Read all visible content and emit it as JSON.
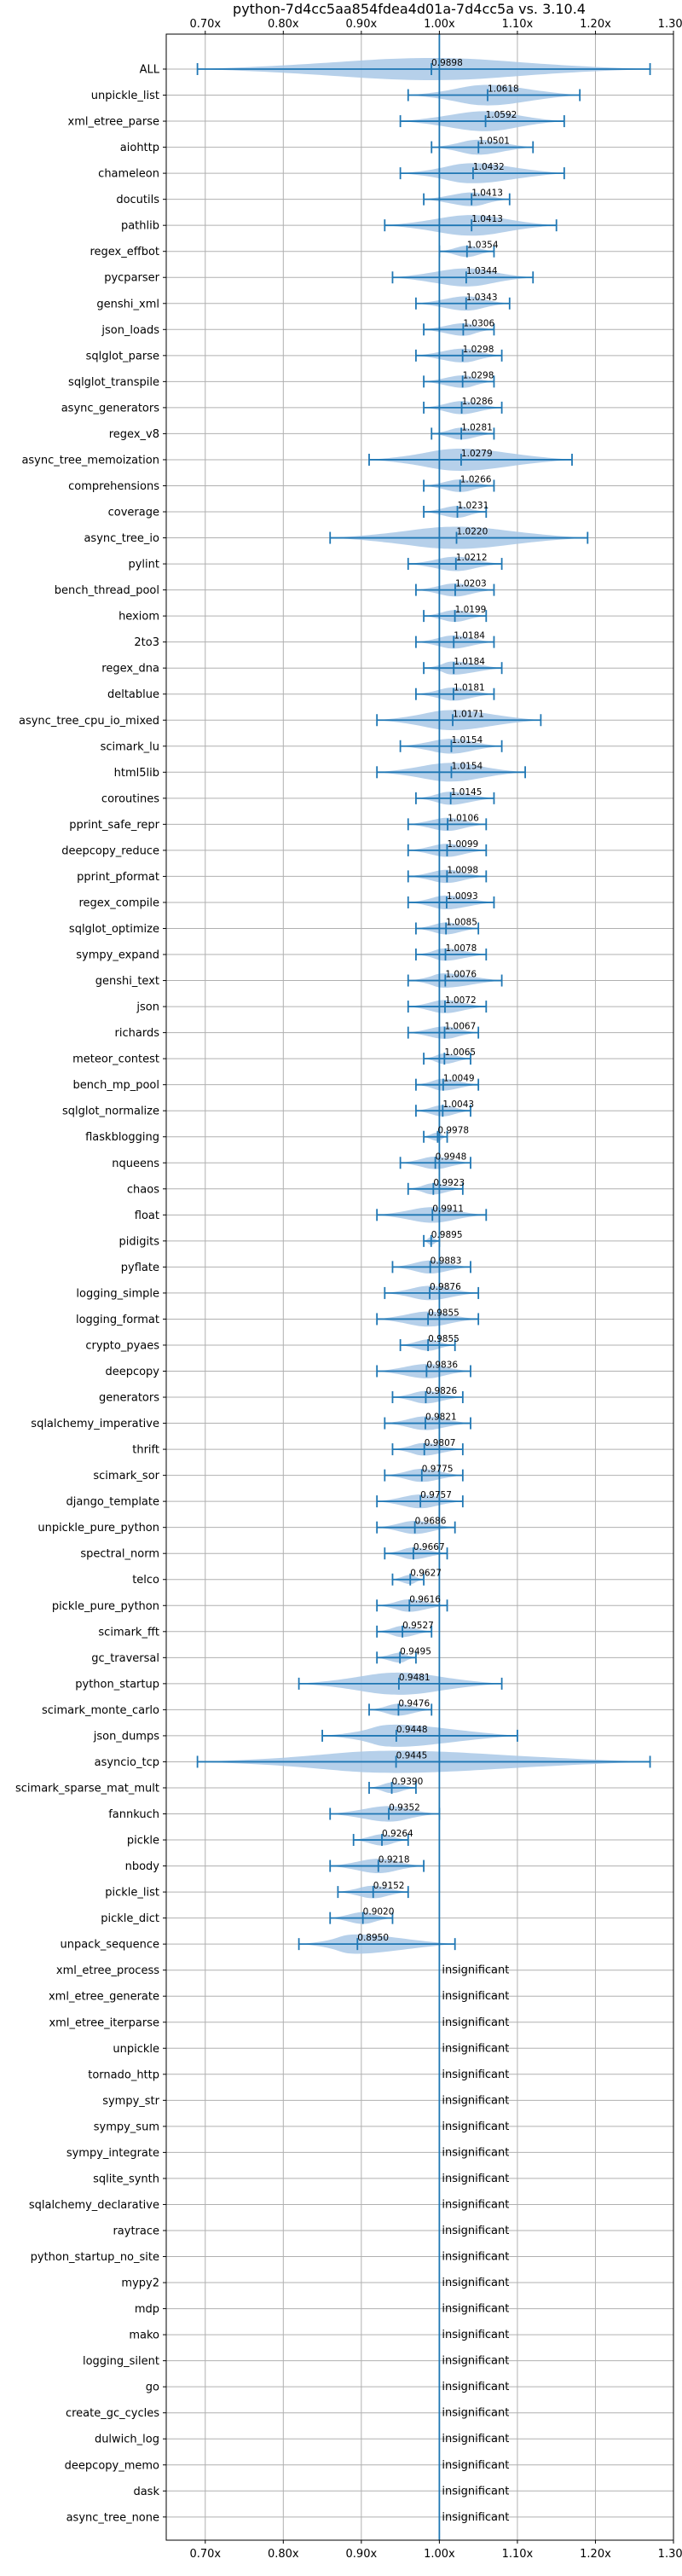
{
  "chart_data": {
    "type": "violin",
    "title": "python-7d4cc5aa854fdea4d01a-7d4cc5a vs. 3.10.4",
    "xlim": [
      0.65,
      1.3
    ],
    "xticks": [
      0.7,
      0.8,
      0.9,
      1.0,
      1.1,
      1.2,
      1.3
    ],
    "xtick_labels": [
      "0.70x",
      "0.80x",
      "0.90x",
      "1.00x",
      "1.10x",
      "1.20x",
      "1.30x"
    ],
    "reference_line": 1.0,
    "grid": true,
    "insignificant_label": "insignificant",
    "benchmarks": [
      {
        "name": "ALL",
        "value": 0.9898,
        "label": "0.9898",
        "min": 0.69,
        "max": 1.27
      },
      {
        "name": "unpickle_list",
        "value": 1.0618,
        "label": "1.0618",
        "min": 0.96,
        "max": 1.18
      },
      {
        "name": "xml_etree_parse",
        "value": 1.0592,
        "label": "1.0592",
        "min": 0.95,
        "max": 1.16
      },
      {
        "name": "aiohttp",
        "value": 1.0501,
        "label": "1.0501",
        "min": 0.99,
        "max": 1.12
      },
      {
        "name": "chameleon",
        "value": 1.0432,
        "label": "1.0432",
        "min": 0.95,
        "max": 1.16
      },
      {
        "name": "docutils",
        "value": 1.0413,
        "label": "1.0413",
        "min": 0.98,
        "max": 1.09
      },
      {
        "name": "pathlib",
        "value": 1.0413,
        "label": "1.0413",
        "min": 0.93,
        "max": 1.15
      },
      {
        "name": "regex_effbot",
        "value": 1.0354,
        "label": "1.0354",
        "min": 1.0,
        "max": 1.07
      },
      {
        "name": "pycparser",
        "value": 1.0344,
        "label": "1.0344",
        "min": 0.94,
        "max": 1.12
      },
      {
        "name": "genshi_xml",
        "value": 1.0343,
        "label": "1.0343",
        "min": 0.97,
        "max": 1.09
      },
      {
        "name": "json_loads",
        "value": 1.0306,
        "label": "1.0306",
        "min": 0.98,
        "max": 1.07
      },
      {
        "name": "sqlglot_parse",
        "value": 1.0298,
        "label": "1.0298",
        "min": 0.97,
        "max": 1.08
      },
      {
        "name": "sqlglot_transpile",
        "value": 1.0298,
        "label": "1.0298",
        "min": 0.98,
        "max": 1.07
      },
      {
        "name": "async_generators",
        "value": 1.0286,
        "label": "1.0286",
        "min": 0.98,
        "max": 1.08
      },
      {
        "name": "regex_v8",
        "value": 1.0281,
        "label": "1.0281",
        "min": 0.99,
        "max": 1.07
      },
      {
        "name": "async_tree_memoization",
        "value": 1.0279,
        "label": "1.0279",
        "min": 0.91,
        "max": 1.17
      },
      {
        "name": "comprehensions",
        "value": 1.0266,
        "label": "1.0266",
        "min": 0.98,
        "max": 1.07
      },
      {
        "name": "coverage",
        "value": 1.0231,
        "label": "1.0231",
        "min": 0.98,
        "max": 1.06
      },
      {
        "name": "async_tree_io",
        "value": 1.022,
        "label": "1.0220",
        "min": 0.86,
        "max": 1.19
      },
      {
        "name": "pylint",
        "value": 1.0212,
        "label": "1.0212",
        "min": 0.96,
        "max": 1.08
      },
      {
        "name": "bench_thread_pool",
        "value": 1.0203,
        "label": "1.0203",
        "min": 0.97,
        "max": 1.07
      },
      {
        "name": "hexiom",
        "value": 1.0199,
        "label": "1.0199",
        "min": 0.98,
        "max": 1.06
      },
      {
        "name": "2to3",
        "value": 1.0184,
        "label": "1.0184",
        "min": 0.97,
        "max": 1.07
      },
      {
        "name": "regex_dna",
        "value": 1.0184,
        "label": "1.0184",
        "min": 0.98,
        "max": 1.08
      },
      {
        "name": "deltablue",
        "value": 1.0181,
        "label": "1.0181",
        "min": 0.97,
        "max": 1.07
      },
      {
        "name": "async_tree_cpu_io_mixed",
        "value": 1.0171,
        "label": "1.0171",
        "min": 0.92,
        "max": 1.13
      },
      {
        "name": "scimark_lu",
        "value": 1.0154,
        "label": "1.0154",
        "min": 0.95,
        "max": 1.08
      },
      {
        "name": "html5lib",
        "value": 1.0154,
        "label": "1.0154",
        "min": 0.92,
        "max": 1.11
      },
      {
        "name": "coroutines",
        "value": 1.0145,
        "label": "1.0145",
        "min": 0.97,
        "max": 1.07
      },
      {
        "name": "pprint_safe_repr",
        "value": 1.0106,
        "label": "1.0106",
        "min": 0.96,
        "max": 1.06
      },
      {
        "name": "deepcopy_reduce",
        "value": 1.0099,
        "label": "1.0099",
        "min": 0.96,
        "max": 1.06
      },
      {
        "name": "pprint_pformat",
        "value": 1.0098,
        "label": "1.0098",
        "min": 0.96,
        "max": 1.06
      },
      {
        "name": "regex_compile",
        "value": 1.0093,
        "label": "1.0093",
        "min": 0.96,
        "max": 1.07
      },
      {
        "name": "sqlglot_optimize",
        "value": 1.0085,
        "label": "1.0085",
        "min": 0.97,
        "max": 1.05
      },
      {
        "name": "sympy_expand",
        "value": 1.0078,
        "label": "1.0078",
        "min": 0.97,
        "max": 1.06
      },
      {
        "name": "genshi_text",
        "value": 1.0076,
        "label": "1.0076",
        "min": 0.96,
        "max": 1.08
      },
      {
        "name": "json",
        "value": 1.0072,
        "label": "1.0072",
        "min": 0.96,
        "max": 1.06
      },
      {
        "name": "richards",
        "value": 1.0067,
        "label": "1.0067",
        "min": 0.96,
        "max": 1.05
      },
      {
        "name": "meteor_contest",
        "value": 1.0065,
        "label": "1.0065",
        "min": 0.98,
        "max": 1.04
      },
      {
        "name": "bench_mp_pool",
        "value": 1.0049,
        "label": "1.0049",
        "min": 0.97,
        "max": 1.05
      },
      {
        "name": "sqlglot_normalize",
        "value": 1.0043,
        "label": "1.0043",
        "min": 0.97,
        "max": 1.04
      },
      {
        "name": "flaskblogging",
        "value": 0.9978,
        "label": "0.9978",
        "min": 0.98,
        "max": 1.01
      },
      {
        "name": "nqueens",
        "value": 0.9948,
        "label": "0.9948",
        "min": 0.95,
        "max": 1.04
      },
      {
        "name": "chaos",
        "value": 0.9923,
        "label": "0.9923",
        "min": 0.96,
        "max": 1.03
      },
      {
        "name": "float",
        "value": 0.9911,
        "label": "0.9911",
        "min": 0.92,
        "max": 1.06
      },
      {
        "name": "pidigits",
        "value": 0.9895,
        "label": "0.9895",
        "min": 0.98,
        "max": 1.0
      },
      {
        "name": "pyflate",
        "value": 0.9883,
        "label": "0.9883",
        "min": 0.94,
        "max": 1.04
      },
      {
        "name": "logging_simple",
        "value": 0.9876,
        "label": "0.9876",
        "min": 0.93,
        "max": 1.05
      },
      {
        "name": "logging_format",
        "value": 0.9855,
        "label": "0.9855",
        "min": 0.92,
        "max": 1.05
      },
      {
        "name": "crypto_pyaes",
        "value": 0.9855,
        "label": "0.9855",
        "min": 0.95,
        "max": 1.02
      },
      {
        "name": "deepcopy",
        "value": 0.9836,
        "label": "0.9836",
        "min": 0.92,
        "max": 1.04
      },
      {
        "name": "generators",
        "value": 0.9826,
        "label": "0.9826",
        "min": 0.94,
        "max": 1.03
      },
      {
        "name": "sqlalchemy_imperative",
        "value": 0.9821,
        "label": "0.9821",
        "min": 0.93,
        "max": 1.04
      },
      {
        "name": "thrift",
        "value": 0.9807,
        "label": "0.9807",
        "min": 0.94,
        "max": 1.03
      },
      {
        "name": "scimark_sor",
        "value": 0.9775,
        "label": "0.9775",
        "min": 0.93,
        "max": 1.03
      },
      {
        "name": "django_template",
        "value": 0.9757,
        "label": "0.9757",
        "min": 0.92,
        "max": 1.03
      },
      {
        "name": "unpickle_pure_python",
        "value": 0.9686,
        "label": "0.9686",
        "min": 0.92,
        "max": 1.02
      },
      {
        "name": "spectral_norm",
        "value": 0.9667,
        "label": "0.9667",
        "min": 0.93,
        "max": 1.01
      },
      {
        "name": "telco",
        "value": 0.9627,
        "label": "0.9627",
        "min": 0.94,
        "max": 0.98
      },
      {
        "name": "pickle_pure_python",
        "value": 0.9616,
        "label": "0.9616",
        "min": 0.92,
        "max": 1.01
      },
      {
        "name": "scimark_fft",
        "value": 0.9527,
        "label": "0.9527",
        "min": 0.92,
        "max": 0.99
      },
      {
        "name": "gc_traversal",
        "value": 0.9495,
        "label": "0.9495",
        "min": 0.92,
        "max": 0.97
      },
      {
        "name": "python_startup",
        "value": 0.9481,
        "label": "0.9481",
        "min": 0.82,
        "max": 1.08
      },
      {
        "name": "scimark_monte_carlo",
        "value": 0.9476,
        "label": "0.9476",
        "min": 0.91,
        "max": 0.99
      },
      {
        "name": "json_dumps",
        "value": 0.9448,
        "label": "0.9448",
        "min": 0.85,
        "max": 1.1
      },
      {
        "name": "asyncio_tcp",
        "value": 0.9445,
        "label": "0.9445",
        "min": 0.69,
        "max": 1.27
      },
      {
        "name": "scimark_sparse_mat_mult",
        "value": 0.939,
        "label": "0.9390",
        "min": 0.91,
        "max": 0.97
      },
      {
        "name": "fannkuch",
        "value": 0.9352,
        "label": "0.9352",
        "min": 0.86,
        "max": 1.0
      },
      {
        "name": "pickle",
        "value": 0.9264,
        "label": "0.9264",
        "min": 0.89,
        "max": 0.96
      },
      {
        "name": "nbody",
        "value": 0.9218,
        "label": "0.9218",
        "min": 0.86,
        "max": 0.98
      },
      {
        "name": "pickle_list",
        "value": 0.9152,
        "label": "0.9152",
        "min": 0.87,
        "max": 0.96
      },
      {
        "name": "pickle_dict",
        "value": 0.902,
        "label": "0.9020",
        "min": 0.86,
        "max": 0.94
      },
      {
        "name": "unpack_sequence",
        "value": 0.895,
        "label": "0.8950",
        "min": 0.82,
        "max": 1.02
      },
      {
        "name": "xml_etree_process",
        "insignificant": true
      },
      {
        "name": "xml_etree_generate",
        "insignificant": true
      },
      {
        "name": "xml_etree_iterparse",
        "insignificant": true
      },
      {
        "name": "unpickle",
        "insignificant": true
      },
      {
        "name": "tornado_http",
        "insignificant": true
      },
      {
        "name": "sympy_str",
        "insignificant": true
      },
      {
        "name": "sympy_sum",
        "insignificant": true
      },
      {
        "name": "sympy_integrate",
        "insignificant": true
      },
      {
        "name": "sqlite_synth",
        "insignificant": true
      },
      {
        "name": "sqlalchemy_declarative",
        "insignificant": true
      },
      {
        "name": "raytrace",
        "insignificant": true
      },
      {
        "name": "python_startup_no_site",
        "insignificant": true
      },
      {
        "name": "mypy2",
        "insignificant": true
      },
      {
        "name": "mdp",
        "insignificant": true
      },
      {
        "name": "mako",
        "insignificant": true
      },
      {
        "name": "logging_silent",
        "insignificant": true
      },
      {
        "name": "go",
        "insignificant": true
      },
      {
        "name": "create_gc_cycles",
        "insignificant": true
      },
      {
        "name": "dulwich_log",
        "insignificant": true
      },
      {
        "name": "deepcopy_memo",
        "insignificant": true
      },
      {
        "name": "dask",
        "insignificant": true
      },
      {
        "name": "async_tree_none",
        "insignificant": true
      }
    ],
    "colors": {
      "violin_fill": "#a9c8e6",
      "errorbar": "#1f77b4",
      "reference_line": "#1f77b4",
      "grid": "#b0b0b0",
      "axes": "#000000"
    }
  }
}
